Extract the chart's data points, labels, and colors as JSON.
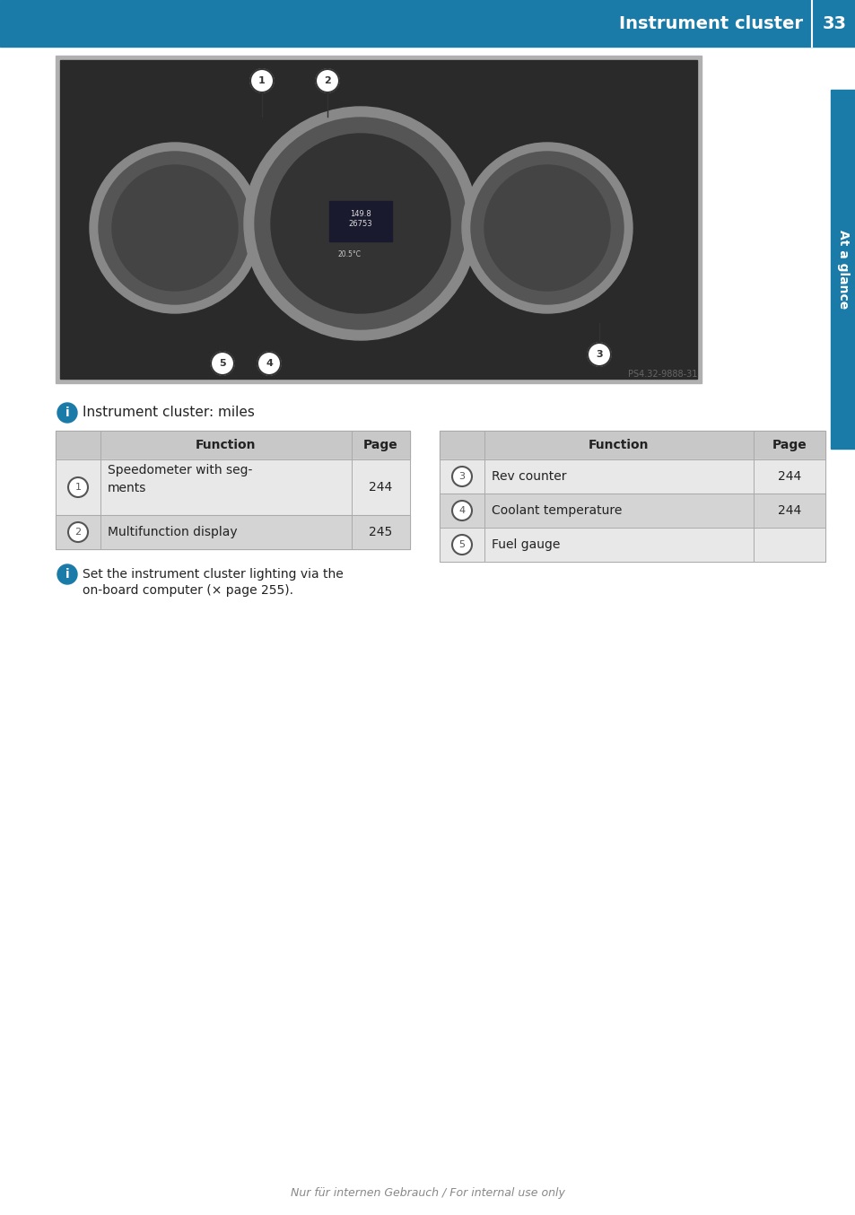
{
  "page_title": "Instrument cluster",
  "page_number": "33",
  "sidebar_label": "At a glance",
  "header_color": "#1a7aa8",
  "header_text_color": "#ffffff",
  "sidebar_color": "#1a7aa8",
  "bg_color": "#ffffff",
  "info_label": "Instrument cluster: miles",
  "table1_header": [
    "Function",
    "Page"
  ],
  "table1_rows": [
    [
      "1",
      "Speedometer with seg-\nments",
      "244"
    ],
    [
      "2",
      "Multifunction display",
      "245"
    ]
  ],
  "table2_header": [
    "Function",
    "Page"
  ],
  "table2_rows": [
    [
      "3",
      "Rev counter",
      "244"
    ],
    [
      "4",
      "Coolant temperature",
      "244"
    ],
    [
      "5",
      "Fuel gauge",
      ""
    ]
  ],
  "note_text": "Set the instrument cluster lighting via the\non-board computer (× page 255).",
  "footer_text": "Nur für internen Gebrauch / For internal use only",
  "image_caption": "PS4.32-9888-31",
  "table_header_bg": "#c8c8c8",
  "table_row_bg_light": "#e8e8e8",
  "table_row_bg_dark": "#d4d4d4",
  "info_icon_color": "#1a7aa8",
  "circle_border_color": "#555555"
}
